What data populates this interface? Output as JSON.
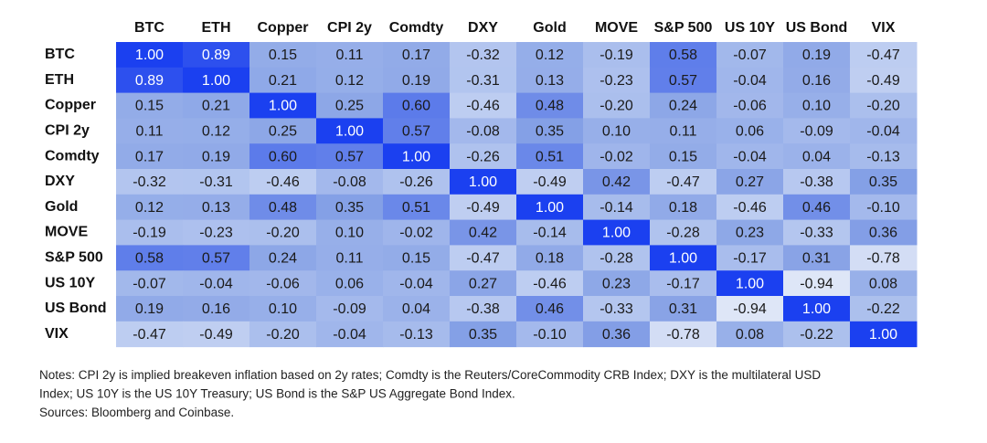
{
  "chart_data": {
    "type": "heatmap",
    "x": [
      "BTC",
      "ETH",
      "Copper",
      "CPI 2y",
      "Comdty",
      "DXY",
      "Gold",
      "MOVE",
      "S&P 500",
      "US 10Y",
      "US Bond",
      "VIX"
    ],
    "y": [
      "BTC",
      "ETH",
      "Copper",
      "CPI 2y",
      "Comdty",
      "DXY",
      "Gold",
      "MOVE",
      "S&P 500",
      "US 10Y",
      "US Bond",
      "VIX"
    ],
    "values": [
      [
        1,
        0.89,
        0.15,
        0.11,
        0.17,
        -0.32,
        0.12,
        -0.19,
        0.58,
        -0.07,
        0.19,
        -0.47
      ],
      [
        0.89,
        1,
        0.21,
        0.12,
        0.19,
        -0.31,
        0.13,
        -0.23,
        0.57,
        -0.04,
        0.16,
        -0.49
      ],
      [
        0.15,
        0.21,
        1,
        0.25,
        0.6,
        -0.46,
        0.48,
        -0.2,
        0.24,
        -0.06,
        0.1,
        -0.2
      ],
      [
        0.11,
        0.12,
        0.25,
        1,
        0.57,
        -0.08,
        0.35,
        0.1,
        0.11,
        0.06,
        -0.09,
        -0.04
      ],
      [
        0.17,
        0.19,
        0.6,
        0.57,
        1,
        -0.26,
        0.51,
        -0.02,
        0.15,
        -0.04,
        0.04,
        -0.13
      ],
      [
        -0.32,
        -0.31,
        -0.46,
        -0.08,
        -0.26,
        1,
        -0.49,
        0.42,
        -0.47,
        0.27,
        -0.38,
        0.35
      ],
      [
        0.12,
        0.13,
        0.48,
        0.35,
        0.51,
        -0.49,
        1,
        -0.14,
        0.18,
        -0.46,
        0.46,
        -0.1
      ],
      [
        -0.19,
        -0.23,
        -0.2,
        0.1,
        -0.02,
        0.42,
        -0.14,
        1,
        -0.28,
        0.23,
        -0.33,
        0.36
      ],
      [
        0.58,
        0.57,
        0.24,
        0.11,
        0.15,
        -0.47,
        0.18,
        -0.28,
        1,
        -0.17,
        0.31,
        -0.78
      ],
      [
        -0.07,
        -0.04,
        -0.06,
        0.06,
        -0.04,
        0.27,
        -0.46,
        0.23,
        -0.17,
        1,
        -0.94,
        0.08
      ],
      [
        0.19,
        0.16,
        0.1,
        -0.09,
        0.04,
        -0.38,
        0.46,
        -0.33,
        0.31,
        -0.94,
        1,
        -0.22
      ],
      [
        -0.47,
        -0.49,
        -0.2,
        -0.04,
        -0.13,
        0.35,
        -0.1,
        0.36,
        -0.78,
        0.08,
        -0.22,
        1
      ]
    ],
    "value_labels": [
      [
        "1.00",
        "0.89",
        "0.15",
        "0.11",
        "0.17",
        "-0.32",
        "0.12",
        "-0.19",
        "0.58",
        "-0.07",
        "0.19",
        "-0.47"
      ],
      [
        "0.89",
        "1.00",
        "0.21",
        "0.12",
        "0.19",
        "-0.31",
        "0.13",
        "-0.23",
        "0.57",
        "-0.04",
        "0.16",
        "-0.49"
      ],
      [
        "0.15",
        "0.21",
        "1.00",
        "0.25",
        "0.60",
        "-0.46",
        "0.48",
        "-0.20",
        "0.24",
        "-0.06",
        "0.10",
        "-0.20"
      ],
      [
        "0.11",
        "0.12",
        "0.25",
        "1.00",
        "0.57",
        "-0.08",
        "0.35",
        "0.10",
        "0.11",
        "0.06",
        "-0.09",
        "-0.04"
      ],
      [
        "0.17",
        "0.19",
        "0.60",
        "0.57",
        "1.00",
        "-0.26",
        "0.51",
        "-0.02",
        "0.15",
        "-0.04",
        "0.04",
        "-0.13"
      ],
      [
        "-0.32",
        "-0.31",
        "-0.46",
        "-0.08",
        "-0.26",
        "1.00",
        "-0.49",
        "0.42",
        "-0.47",
        "0.27",
        "-0.38",
        "0.35"
      ],
      [
        "0.12",
        "0.13",
        "0.48",
        "0.35",
        "0.51",
        "-0.49",
        "1.00",
        "-0.14",
        "0.18",
        "-0.46",
        "0.46",
        "-0.10"
      ],
      [
        "-0.19",
        "-0.23",
        "-0.20",
        "0.10",
        "-0.02",
        "0.42",
        "-0.14",
        "1.00",
        "-0.28",
        "0.23",
        "-0.33",
        "0.36"
      ],
      [
        "0.58",
        "0.57",
        "0.24",
        "0.11",
        "0.15",
        "-0.47",
        "0.18",
        "-0.28",
        "1.00",
        "-0.17",
        "0.31",
        "-0.78"
      ],
      [
        "-0.07",
        "-0.04",
        "-0.06",
        "0.06",
        "-0.04",
        "0.27",
        "-0.46",
        "0.23",
        "-0.17",
        "1.00",
        "-0.94",
        "0.08"
      ],
      [
        "0.19",
        "0.16",
        "0.10",
        "-0.09",
        "0.04",
        "-0.38",
        "0.46",
        "-0.33",
        "0.31",
        "-0.94",
        "1.00",
        "-0.22"
      ],
      [
        "-0.47",
        "-0.49",
        "-0.20",
        "-0.04",
        "-0.13",
        "0.35",
        "-0.10",
        "0.36",
        "-0.78",
        "0.08",
        "-0.22",
        "1.00"
      ]
    ],
    "zlim": [
      -1,
      1
    ],
    "colormap": [
      "#e2e9f8",
      "#b4c6ef",
      "#87a2e6",
      "#1b40f0"
    ],
    "notes": [
      "Notes: CPI 2y is implied breakeven inflation based on 2y rates; Comdty is the Reuters/CoreCommodity CRB Index; DXY is the multilateral USD",
      "Index; US 10Y is the US 10Y Treasury; US Bond is the S&P US Aggregate Bond Index.",
      "Sources: Bloomberg and Coinbase."
    ]
  }
}
